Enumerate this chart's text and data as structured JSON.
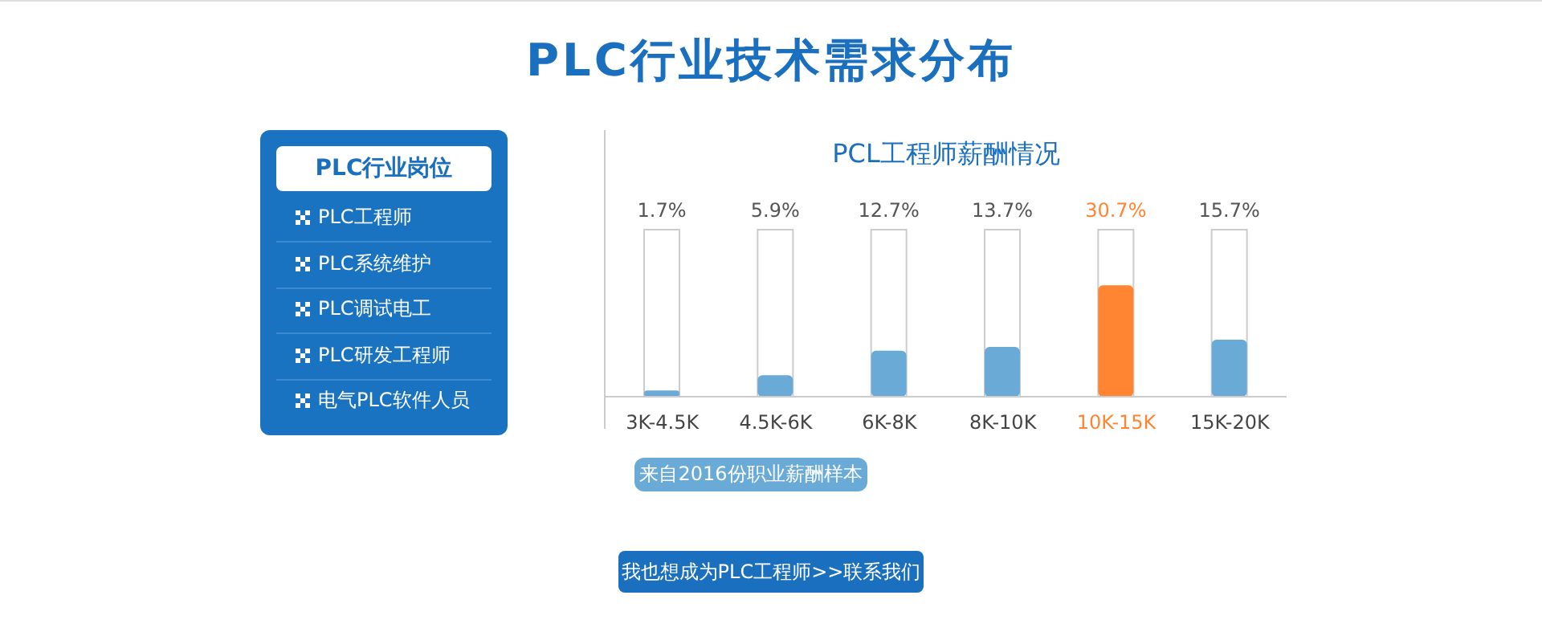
{
  "chart_data": [
    {
      "type": "bar",
      "title": "PLC行业技术需求分布",
      "subtitle": "PCL工程师薪酬情况",
      "categories": [
        "3K-4.5K",
        "4.5K-6K",
        "6K-8K",
        "8K-10K",
        "10K-15K",
        "15K-20K"
      ],
      "values": [
        1.7,
        5.9,
        12.7,
        13.7,
        30.7,
        15.7
      ],
      "colors": [
        "#6aaad6",
        "#6aaad6",
        "#6aaad6",
        "#6aaad6",
        "#ff8533",
        "#6aaad6"
      ],
      "value_labels": [
        "1.7%",
        "5.9%",
        "12.7%",
        "13.7%",
        "30.7%",
        "15.7%"
      ],
      "annotations": [
        "来自2016份职业薪酬样本",
        "我也想成为PLC工程师>>联系我们"
      ]
    },
    {
      "type": "other",
      "title": "PLC行业岗位",
      "annotations": [
        "PLC工程师",
        "PLC系统维护",
        "PLC调试电工",
        "PLC研发工程师",
        "电气PLC软件人员"
      ]
    }
  ]
}
